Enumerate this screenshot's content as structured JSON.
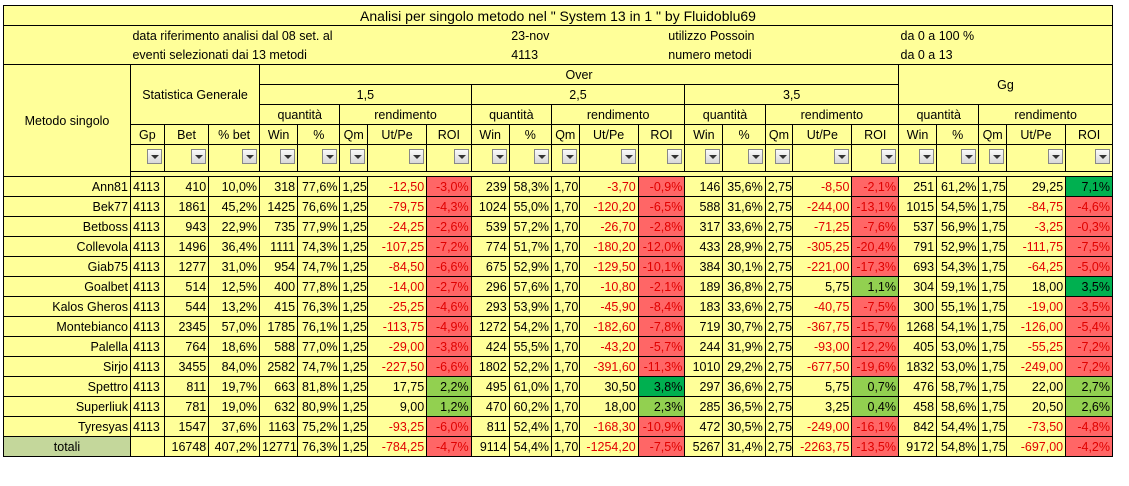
{
  "title": "Analisi  per singolo metodo nel \" System 13 in 1 \"  by  Fluidoblu69",
  "info": {
    "r1": {
      "a": "data riferimento analisi dal 08 set. al",
      "b": "23-nov",
      "c": "utilizzo Possoin",
      "d": "da 0 a 100 %"
    },
    "r2": {
      "a": "eventi selezionati dai 13 metodi",
      "b": "4113",
      "c": "numero metodi",
      "d": "da 0 a 13"
    }
  },
  "headers": {
    "stat": "Statistica Generale",
    "metodo": "Metodo singolo",
    "over": "Over",
    "gg": "Gg",
    "g15": "1,5",
    "g25": "2,5",
    "g35": "3,5",
    "quantita": "quantità",
    "rendimento": "rendimento",
    "cols": [
      "Gp",
      "Bet",
      "% bet",
      "Win",
      "%",
      "Qm",
      "Ut/Pe",
      "ROI"
    ]
  },
  "rows": [
    {
      "name": "Ann81",
      "gp": "4113",
      "bet": "410",
      "pbet": "10,0%",
      "o15": [
        "318",
        "77,6%",
        "1,25",
        "-12,50",
        "-3,0%"
      ],
      "o25": [
        "239",
        "58,3%",
        "1,70",
        "-3,70",
        "-0,9%"
      ],
      "o35": [
        "146",
        "35,6%",
        "2,75",
        "-8,50",
        "-2,1%"
      ],
      "gg": [
        "251",
        "61,2%",
        "1,75",
        "29,25",
        "7,1%"
      ]
    },
    {
      "name": "Bek77",
      "gp": "4113",
      "bet": "1861",
      "pbet": "45,2%",
      "o15": [
        "1425",
        "76,6%",
        "1,25",
        "-79,75",
        "-4,3%"
      ],
      "o25": [
        "1024",
        "55,0%",
        "1,70",
        "-120,20",
        "-6,5%"
      ],
      "o35": [
        "588",
        "31,6%",
        "2,75",
        "-244,00",
        "-13,1%"
      ],
      "gg": [
        "1015",
        "54,5%",
        "1,75",
        "-84,75",
        "-4,6%"
      ]
    },
    {
      "name": "Betboss",
      "gp": "4113",
      "bet": "943",
      "pbet": "22,9%",
      "o15": [
        "735",
        "77,9%",
        "1,25",
        "-24,25",
        "-2,6%"
      ],
      "o25": [
        "539",
        "57,2%",
        "1,70",
        "-26,70",
        "-2,8%"
      ],
      "o35": [
        "317",
        "33,6%",
        "2,75",
        "-71,25",
        "-7,6%"
      ],
      "gg": [
        "537",
        "56,9%",
        "1,75",
        "-3,25",
        "-0,3%"
      ]
    },
    {
      "name": "Collevola",
      "gp": "4113",
      "bet": "1496",
      "pbet": "36,4%",
      "o15": [
        "1111",
        "74,3%",
        "1,25",
        "-107,25",
        "-7,2%"
      ],
      "o25": [
        "774",
        "51,7%",
        "1,70",
        "-180,20",
        "-12,0%"
      ],
      "o35": [
        "433",
        "28,9%",
        "2,75",
        "-305,25",
        "-20,4%"
      ],
      "gg": [
        "791",
        "52,9%",
        "1,75",
        "-111,75",
        "-7,5%"
      ]
    },
    {
      "name": "Giab75",
      "gp": "4113",
      "bet": "1277",
      "pbet": "31,0%",
      "o15": [
        "954",
        "74,7%",
        "1,25",
        "-84,50",
        "-6,6%"
      ],
      "o25": [
        "675",
        "52,9%",
        "1,70",
        "-129,50",
        "-10,1%"
      ],
      "o35": [
        "384",
        "30,1%",
        "2,75",
        "-221,00",
        "-17,3%"
      ],
      "gg": [
        "693",
        "54,3%",
        "1,75",
        "-64,25",
        "-5,0%"
      ]
    },
    {
      "name": "Goalbet",
      "gp": "4113",
      "bet": "514",
      "pbet": "12,5%",
      "o15": [
        "400",
        "77,8%",
        "1,25",
        "-14,00",
        "-2,7%"
      ],
      "o25": [
        "296",
        "57,6%",
        "1,70",
        "-10,80",
        "-2,1%"
      ],
      "o35": [
        "189",
        "36,8%",
        "2,75",
        "5,75",
        "1,1%"
      ],
      "gg": [
        "304",
        "59,1%",
        "1,75",
        "18,00",
        "3,5%"
      ]
    },
    {
      "name": "Kalos Gheros",
      "gp": "4113",
      "bet": "544",
      "pbet": "13,2%",
      "o15": [
        "415",
        "76,3%",
        "1,25",
        "-25,25",
        "-4,6%"
      ],
      "o25": [
        "293",
        "53,9%",
        "1,70",
        "-45,90",
        "-8,4%"
      ],
      "o35": [
        "183",
        "33,6%",
        "2,75",
        "-40,75",
        "-7,5%"
      ],
      "gg": [
        "300",
        "55,1%",
        "1,75",
        "-19,00",
        "-3,5%"
      ]
    },
    {
      "name": "Montebianco",
      "gp": "4113",
      "bet": "2345",
      "pbet": "57,0%",
      "o15": [
        "1785",
        "76,1%",
        "1,25",
        "-113,75",
        "-4,9%"
      ],
      "o25": [
        "1272",
        "54,2%",
        "1,70",
        "-182,60",
        "-7,8%"
      ],
      "o35": [
        "719",
        "30,7%",
        "2,75",
        "-367,75",
        "-15,7%"
      ],
      "gg": [
        "1268",
        "54,1%",
        "1,75",
        "-126,00",
        "-5,4%"
      ]
    },
    {
      "name": "Palella",
      "gp": "4113",
      "bet": "764",
      "pbet": "18,6%",
      "o15": [
        "588",
        "77,0%",
        "1,25",
        "-29,00",
        "-3,8%"
      ],
      "o25": [
        "424",
        "55,5%",
        "1,70",
        "-43,20",
        "-5,7%"
      ],
      "o35": [
        "244",
        "31,9%",
        "2,75",
        "-93,00",
        "-12,2%"
      ],
      "gg": [
        "405",
        "53,0%",
        "1,75",
        "-55,25",
        "-7,2%"
      ]
    },
    {
      "name": "Sirjo",
      "gp": "4113",
      "bet": "3455",
      "pbet": "84,0%",
      "o15": [
        "2582",
        "74,7%",
        "1,25",
        "-227,50",
        "-6,6%"
      ],
      "o25": [
        "1802",
        "52,2%",
        "1,70",
        "-391,60",
        "-11,3%"
      ],
      "o35": [
        "1010",
        "29,2%",
        "2,75",
        "-677,50",
        "-19,6%"
      ],
      "gg": [
        "1832",
        "53,0%",
        "1,75",
        "-249,00",
        "-7,2%"
      ]
    },
    {
      "name": "Spettro",
      "gp": "4113",
      "bet": "811",
      "pbet": "19,7%",
      "o15": [
        "663",
        "81,8%",
        "1,25",
        "17,75",
        "2,2%"
      ],
      "o25": [
        "495",
        "61,0%",
        "1,70",
        "30,50",
        "3,8%"
      ],
      "o35": [
        "297",
        "36,6%",
        "2,75",
        "5,75",
        "0,7%"
      ],
      "gg": [
        "476",
        "58,7%",
        "1,75",
        "22,00",
        "2,7%"
      ]
    },
    {
      "name": "Superliuk",
      "gp": "4113",
      "bet": "781",
      "pbet": "19,0%",
      "o15": [
        "632",
        "80,9%",
        "1,25",
        "9,00",
        "1,2%"
      ],
      "o25": [
        "470",
        "60,2%",
        "1,70",
        "18,00",
        "2,3%"
      ],
      "o35": [
        "285",
        "36,5%",
        "2,75",
        "3,25",
        "0,4%"
      ],
      "gg": [
        "458",
        "58,6%",
        "1,75",
        "20,50",
        "2,6%"
      ]
    },
    {
      "name": "Tyresyas",
      "gp": "4113",
      "bet": "1547",
      "pbet": "37,6%",
      "o15": [
        "1163",
        "75,2%",
        "1,25",
        "-93,25",
        "-6,0%"
      ],
      "o25": [
        "811",
        "52,4%",
        "1,70",
        "-168,30",
        "-10,9%"
      ],
      "o35": [
        "472",
        "30,5%",
        "2,75",
        "-249,00",
        "-16,1%"
      ],
      "gg": [
        "842",
        "54,4%",
        "1,75",
        "-73,50",
        "-4,8%"
      ]
    }
  ],
  "totals": {
    "name": "totali",
    "gp": "",
    "bet": "16748",
    "pbet": "407,2%",
    "o15": [
      "12771",
      "76,3%",
      "1,25",
      "-784,25",
      "-4,7%"
    ],
    "o25": [
      "9114",
      "54,4%",
      "1,70",
      "-1254,20",
      "-7,5%"
    ],
    "o35": [
      "5267",
      "31,4%",
      "2,75",
      "-2263,75",
      "-13,5%"
    ],
    "gg": [
      "9172",
      "54,8%",
      "1,75",
      "-697,00",
      "-4,2%"
    ]
  },
  "colors": {
    "positive_strong": "#00b050",
    "positive_light": "#92d050",
    "negative": "#ff6666",
    "header": "#ffff99"
  }
}
